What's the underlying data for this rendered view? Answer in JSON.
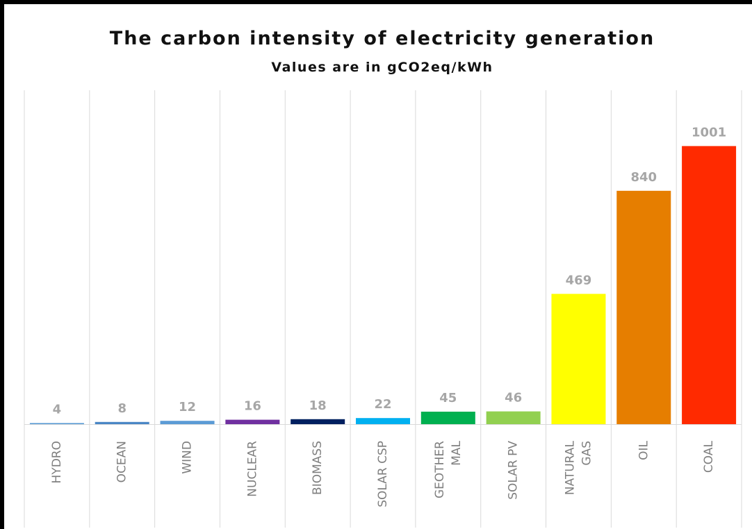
{
  "chart_data": {
    "type": "bar",
    "title": "The carbon intensity of electricity generation",
    "subtitle": "Values are in gCO2eq/kWh",
    "xlabel": "",
    "ylabel": "",
    "categories": [
      "HYDRO",
      "OCEAN",
      "WIND",
      "NUCLEAR",
      "BIOMASS",
      "SOLAR CSP",
      "GEOTHER MAL",
      "SOLAR PV",
      "NATURAL GAS",
      "OIL",
      "COAL"
    ],
    "category_lines": [
      [
        "HYDRO"
      ],
      [
        "OCEAN"
      ],
      [
        "WIND"
      ],
      [
        "NUCLEAR"
      ],
      [
        "BIOMASS"
      ],
      [
        "SOLAR CSP"
      ],
      [
        "GEOTHER",
        "MAL"
      ],
      [
        "SOLAR PV"
      ],
      [
        "NATURAL",
        "GAS"
      ],
      [
        "OIL"
      ],
      [
        "COAL"
      ]
    ],
    "values": [
      4,
      8,
      12,
      16,
      18,
      22,
      45,
      46,
      469,
      840,
      1001
    ],
    "data_labels": [
      "4",
      "8",
      "12",
      "16",
      "18",
      "22",
      "45",
      "46",
      "469",
      "840",
      "1001"
    ],
    "colors": [
      "#5b9bd5",
      "#4a86c5",
      "#5b9bd5",
      "#7030a0",
      "#002060",
      "#00b0f0",
      "#00b050",
      "#92d050",
      "#ffff00",
      "#e67e00",
      "#ff2a00"
    ],
    "ylim": [
      0,
      1050
    ],
    "grid": "vertical category separators",
    "legend": "none"
  }
}
